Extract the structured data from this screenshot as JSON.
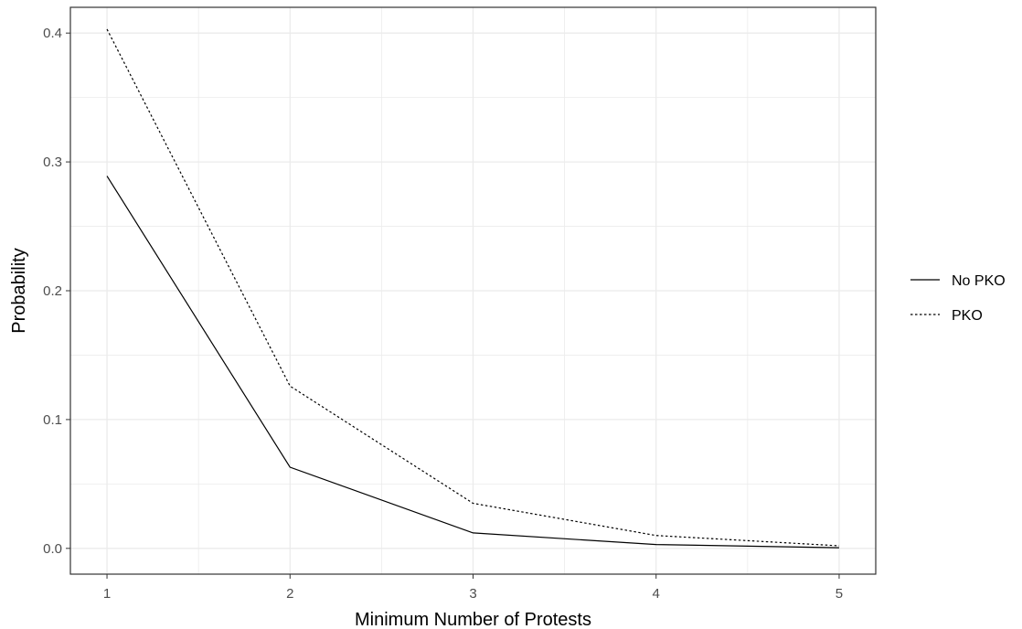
{
  "chart_data": {
    "type": "line",
    "title": "",
    "xlabel": "Minimum Number of Protests",
    "ylabel": "Probability",
    "x": [
      1,
      2,
      3,
      4,
      5
    ],
    "xlim": [
      0.8,
      5.2
    ],
    "ylim": [
      -0.02,
      0.42
    ],
    "x_ticks": [
      "1",
      "2",
      "3",
      "4",
      "5"
    ],
    "y_ticks": [
      "0.0",
      "0.1",
      "0.2",
      "0.3",
      "0.4"
    ],
    "grid": true,
    "legend_position": "right",
    "series": [
      {
        "name": "No PKO",
        "line_style": "solid",
        "values": [
          0.289,
          0.063,
          0.012,
          0.003,
          0.0005
        ]
      },
      {
        "name": "PKO",
        "line_style": "dotted",
        "values": [
          0.403,
          0.126,
          0.035,
          0.01,
          0.002
        ]
      }
    ],
    "colors": {
      "line": "#000000",
      "grid": "#ebebeb",
      "panel_border": "#333333",
      "tick_text": "#4d4d4d"
    }
  }
}
